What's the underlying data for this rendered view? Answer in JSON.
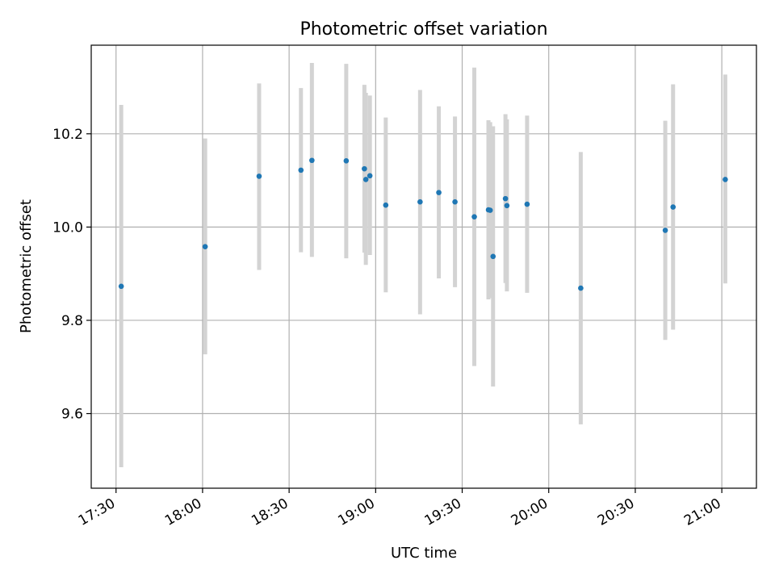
{
  "chart_data": {
    "type": "scatter",
    "title": "Photometric offset variation",
    "xlabel": "UTC time",
    "ylabel": "Photometric offset",
    "x_ticks": [
      "17:30",
      "18:00",
      "18:30",
      "19:00",
      "19:30",
      "20:00",
      "20:30",
      "21:00"
    ],
    "x_tick_minutes": [
      1050,
      1080,
      1110,
      1140,
      1170,
      1200,
      1230,
      1260
    ],
    "xlim_minutes": [
      1041.4,
      1272.0
    ],
    "y_ticks": [
      "9.6",
      "9.8",
      "10.0",
      "10.2"
    ],
    "y_tick_values": [
      9.6,
      9.8,
      10.0,
      10.2
    ],
    "ylim": [
      9.44,
      10.39
    ],
    "grid": true,
    "point_color": "#1f77b4",
    "errorbar_color": "#d3d3d3",
    "points": [
      {
        "time": "17:31:48",
        "minutes": 1051.8,
        "y": 9.873,
        "low": 9.485,
        "high": 10.262
      },
      {
        "time": "18:00:54",
        "minutes": 1080.9,
        "y": 9.958,
        "low": 9.727,
        "high": 10.19
      },
      {
        "time": "18:19:36",
        "minutes": 1099.6,
        "y": 10.109,
        "low": 9.908,
        "high": 10.308
      },
      {
        "time": "18:34:06",
        "minutes": 1114.1,
        "y": 10.122,
        "low": 9.946,
        "high": 10.298
      },
      {
        "time": "18:37:54",
        "minutes": 1117.9,
        "y": 10.143,
        "low": 9.936,
        "high": 10.352
      },
      {
        "time": "18:49:48",
        "minutes": 1129.8,
        "y": 10.142,
        "low": 9.933,
        "high": 10.35
      },
      {
        "time": "18:56:06",
        "minutes": 1136.1,
        "y": 10.125,
        "low": 9.945,
        "high": 10.305
      },
      {
        "time": "18:56:36",
        "minutes": 1136.6,
        "y": 10.102,
        "low": 9.919,
        "high": 10.288
      },
      {
        "time": "18:58:00",
        "minutes": 1138.0,
        "y": 10.11,
        "low": 9.94,
        "high": 10.282
      },
      {
        "time": "19:03:30",
        "minutes": 1143.5,
        "y": 10.047,
        "low": 9.86,
        "high": 10.235
      },
      {
        "time": "19:15:24",
        "minutes": 1155.4,
        "y": 10.054,
        "low": 9.813,
        "high": 10.294
      },
      {
        "time": "19:21:54",
        "minutes": 1161.9,
        "y": 10.074,
        "low": 9.89,
        "high": 10.259
      },
      {
        "time": "19:27:30",
        "minutes": 1167.5,
        "y": 10.054,
        "low": 9.871,
        "high": 10.237
      },
      {
        "time": "19:34:12",
        "minutes": 1174.2,
        "y": 10.022,
        "low": 9.702,
        "high": 10.342
      },
      {
        "time": "19:39:06",
        "minutes": 1179.1,
        "y": 10.037,
        "low": 9.845,
        "high": 10.229
      },
      {
        "time": "19:39:42",
        "minutes": 1179.7,
        "y": 10.036,
        "low": 9.848,
        "high": 10.225
      },
      {
        "time": "19:40:42",
        "minutes": 1180.7,
        "y": 9.937,
        "low": 9.658,
        "high": 10.216
      },
      {
        "time": "19:45:00",
        "minutes": 1185.0,
        "y": 10.061,
        "low": 9.88,
        "high": 10.242
      },
      {
        "time": "19:45:30",
        "minutes": 1185.5,
        "y": 10.046,
        "low": 9.862,
        "high": 10.231
      },
      {
        "time": "19:52:30",
        "minutes": 1192.5,
        "y": 10.049,
        "low": 9.859,
        "high": 10.239
      },
      {
        "time": "20:11:06",
        "minutes": 1211.1,
        "y": 9.869,
        "low": 9.577,
        "high": 10.161
      },
      {
        "time": "20:40:24",
        "minutes": 1240.4,
        "y": 9.993,
        "low": 9.758,
        "high": 10.228
      },
      {
        "time": "20:43:06",
        "minutes": 1243.1,
        "y": 10.043,
        "low": 9.78,
        "high": 10.306
      },
      {
        "time": "21:01:12",
        "minutes": 1261.2,
        "y": 10.102,
        "low": 9.879,
        "high": 10.327
      }
    ]
  }
}
